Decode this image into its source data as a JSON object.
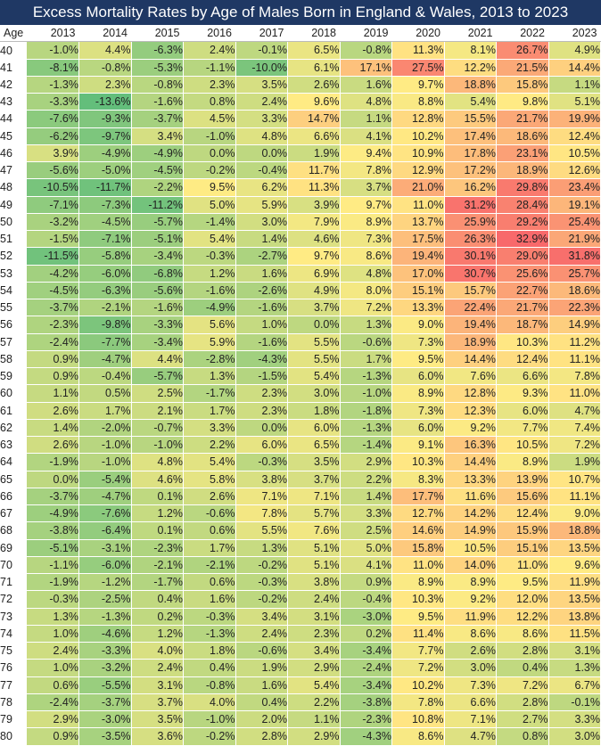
{
  "chart_data": {
    "type": "heatmap",
    "title": "Excess Mortality Rates by Age of Males Born in England & Wales, 2013 to 2023",
    "row_header": "Age",
    "columns": [
      "2013",
      "2014",
      "2015",
      "2016",
      "2017",
      "2018",
      "2019",
      "2020",
      "2021",
      "2022",
      "2023"
    ],
    "rows": [
      {
        "age": "40",
        "values": [
          -1.0,
          4.4,
          -6.3,
          2.4,
          -0.1,
          6.5,
          -0.8,
          11.3,
          8.1,
          26.7,
          4.9
        ]
      },
      {
        "age": "41",
        "values": [
          -8.1,
          -0.8,
          -5.3,
          -1.1,
          -10.0,
          6.1,
          17.1,
          27.5,
          12.2,
          21.5,
          14.4
        ]
      },
      {
        "age": "42",
        "values": [
          -1.3,
          2.3,
          -0.8,
          2.3,
          3.5,
          2.6,
          1.6,
          9.7,
          18.8,
          15.8,
          1.1
        ]
      },
      {
        "age": "43",
        "values": [
          -3.3,
          -13.6,
          -1.6,
          0.8,
          2.4,
          9.6,
          4.8,
          8.8,
          5.4,
          9.8,
          5.1
        ]
      },
      {
        "age": "44",
        "values": [
          -7.6,
          -9.3,
          -3.7,
          4.5,
          3.3,
          14.7,
          1.1,
          12.8,
          15.5,
          21.7,
          19.9
        ]
      },
      {
        "age": "45",
        "values": [
          -6.2,
          -9.7,
          3.4,
          -1.0,
          4.8,
          6.6,
          4.1,
          10.2,
          17.4,
          18.6,
          12.4
        ]
      },
      {
        "age": "46",
        "values": [
          3.9,
          -4.9,
          -4.9,
          0.0,
          0.0,
          1.9,
          9.4,
          10.9,
          17.8,
          23.1,
          10.5
        ]
      },
      {
        "age": "47",
        "values": [
          -5.6,
          -5.0,
          -4.5,
          -0.2,
          -0.4,
          11.7,
          7.8,
          12.9,
          17.2,
          18.9,
          12.6
        ]
      },
      {
        "age": "48",
        "values": [
          -10.5,
          -11.7,
          -2.2,
          9.5,
          6.2,
          11.3,
          3.7,
          21.0,
          16.2,
          29.8,
          23.4
        ]
      },
      {
        "age": "49",
        "values": [
          -7.1,
          -7.3,
          -11.2,
          5.0,
          5.9,
          3.9,
          9.7,
          11.0,
          31.2,
          28.4,
          19.1
        ]
      },
      {
        "age": "50",
        "values": [
          -3.2,
          -4.5,
          -5.7,
          -1.4,
          3.0,
          7.9,
          8.9,
          13.7,
          25.9,
          29.2,
          25.4
        ]
      },
      {
        "age": "51",
        "values": [
          -1.5,
          -7.1,
          -5.1,
          5.4,
          1.4,
          4.6,
          7.3,
          17.5,
          26.3,
          32.9,
          21.9
        ]
      },
      {
        "age": "52",
        "values": [
          -11.5,
          -5.8,
          -3.4,
          -0.3,
          -2.7,
          9.7,
          8.6,
          19.4,
          30.1,
          29.0,
          31.8
        ]
      },
      {
        "age": "53",
        "values": [
          -4.2,
          -6.0,
          -6.8,
          1.2,
          1.6,
          6.9,
          4.8,
          17.0,
          30.7,
          25.6,
          25.7
        ]
      },
      {
        "age": "54",
        "values": [
          -4.5,
          -6.3,
          -5.6,
          -1.6,
          -2.6,
          4.9,
          8.0,
          15.1,
          15.7,
          22.7,
          18.6
        ]
      },
      {
        "age": "55",
        "values": [
          -3.7,
          -2.1,
          -1.6,
          -4.9,
          -1.6,
          3.7,
          7.2,
          13.3,
          22.4,
          21.7,
          22.3
        ]
      },
      {
        "age": "56",
        "values": [
          -2.3,
          -9.8,
          -3.3,
          5.6,
          1.0,
          0.0,
          1.3,
          9.0,
          19.4,
          18.7,
          14.9
        ]
      },
      {
        "age": "57",
        "values": [
          -2.4,
          -7.7,
          -3.4,
          5.9,
          -1.6,
          5.5,
          -0.6,
          7.3,
          18.9,
          10.3,
          11.2
        ]
      },
      {
        "age": "58",
        "values": [
          0.9,
          -4.7,
          4.4,
          -2.8,
          -4.3,
          5.5,
          1.7,
          9.5,
          14.4,
          12.4,
          11.1
        ]
      },
      {
        "age": "59",
        "values": [
          0.9,
          -0.4,
          -5.7,
          1.3,
          -1.5,
          5.4,
          -1.3,
          6.0,
          7.6,
          6.6,
          7.8
        ]
      },
      {
        "age": "60",
        "values": [
          1.1,
          0.5,
          2.5,
          -1.7,
          2.3,
          3.0,
          -1.0,
          8.9,
          12.8,
          9.3,
          11.0
        ]
      },
      {
        "age": "61",
        "values": [
          2.6,
          1.7,
          2.1,
          1.7,
          2.3,
          1.8,
          -1.8,
          7.3,
          12.3,
          6.0,
          4.7
        ]
      },
      {
        "age": "62",
        "values": [
          1.4,
          -2.0,
          -0.7,
          3.3,
          0.0,
          6.0,
          -1.3,
          6.0,
          9.2,
          7.7,
          7.4
        ]
      },
      {
        "age": "63",
        "values": [
          2.6,
          -1.0,
          -1.0,
          2.2,
          6.0,
          6.5,
          -1.4,
          9.1,
          16.3,
          10.5,
          7.2
        ]
      },
      {
        "age": "64",
        "values": [
          -1.9,
          -1.0,
          4.8,
          5.4,
          -0.3,
          3.5,
          2.9,
          10.3,
          14.4,
          8.9,
          1.9
        ]
      },
      {
        "age": "65",
        "values": [
          0.0,
          -5.4,
          4.6,
          5.8,
          3.8,
          3.7,
          2.2,
          8.3,
          13.3,
          13.9,
          10.7
        ]
      },
      {
        "age": "66",
        "values": [
          -3.7,
          -4.7,
          0.1,
          2.6,
          7.1,
          7.1,
          1.4,
          17.7,
          11.6,
          15.6,
          11.1
        ]
      },
      {
        "age": "67",
        "values": [
          -4.9,
          -7.6,
          1.2,
          -0.6,
          7.8,
          5.7,
          3.3,
          12.7,
          14.2,
          12.4,
          9.0
        ]
      },
      {
        "age": "68",
        "values": [
          -3.8,
          -6.4,
          0.1,
          0.6,
          5.5,
          7.6,
          2.5,
          14.6,
          14.9,
          15.9,
          18.8
        ]
      },
      {
        "age": "69",
        "values": [
          -5.1,
          -3.1,
          -2.3,
          1.7,
          1.3,
          5.1,
          5.0,
          15.8,
          10.5,
          15.1,
          13.5
        ]
      },
      {
        "age": "70",
        "values": [
          -1.1,
          -6.0,
          -2.1,
          -2.1,
          -0.2,
          5.1,
          4.1,
          11.0,
          14.0,
          11.0,
          9.6
        ]
      },
      {
        "age": "71",
        "values": [
          -1.9,
          -1.2,
          -1.7,
          0.6,
          -0.3,
          3.8,
          0.9,
          8.9,
          8.9,
          9.5,
          11.9
        ]
      },
      {
        "age": "72",
        "values": [
          -0.3,
          -2.5,
          0.4,
          1.6,
          -0.2,
          2.4,
          -0.4,
          10.3,
          9.2,
          12.0,
          13.5
        ]
      },
      {
        "age": "73",
        "values": [
          1.3,
          -1.3,
          0.2,
          -0.3,
          3.4,
          3.1,
          -3.0,
          9.5,
          11.9,
          12.2,
          13.8
        ]
      },
      {
        "age": "74",
        "values": [
          1.0,
          -4.6,
          1.2,
          -1.3,
          2.4,
          2.3,
          0.2,
          11.4,
          8.6,
          8.6,
          11.5
        ]
      },
      {
        "age": "75",
        "values": [
          2.4,
          -3.3,
          4.0,
          1.8,
          -0.6,
          3.4,
          -3.4,
          7.7,
          2.6,
          2.8,
          3.1
        ]
      },
      {
        "age": "76",
        "values": [
          1.0,
          -3.2,
          2.4,
          0.4,
          1.9,
          2.9,
          -2.4,
          7.2,
          3.0,
          0.4,
          1.3
        ]
      },
      {
        "age": "77",
        "values": [
          0.6,
          -5.5,
          3.1,
          -0.8,
          1.6,
          5.4,
          -3.4,
          10.2,
          7.3,
          7.2,
          6.7
        ]
      },
      {
        "age": "78",
        "values": [
          -2.4,
          -3.7,
          3.7,
          4.0,
          0.4,
          2.2,
          -3.8,
          7.8,
          6.6,
          2.8,
          -0.1
        ]
      },
      {
        "age": "79",
        "values": [
          2.9,
          -3.0,
          3.5,
          -1.0,
          2.0,
          1.1,
          -2.3,
          10.8,
          7.1,
          2.7,
          3.3
        ]
      },
      {
        "age": "80",
        "values": [
          0.9,
          -3.5,
          3.6,
          -0.2,
          2.8,
          2.9,
          -4.3,
          8.6,
          4.7,
          0.8,
          3.0
        ]
      }
    ],
    "value_format": "percent_1dp",
    "color_scale": {
      "min_value": -13.6,
      "mid_value": 9.65,
      "max_value": 32.9,
      "low_color": "#63be7b",
      "mid_color": "#ffeb84",
      "high_color": "#f8696b"
    }
  }
}
